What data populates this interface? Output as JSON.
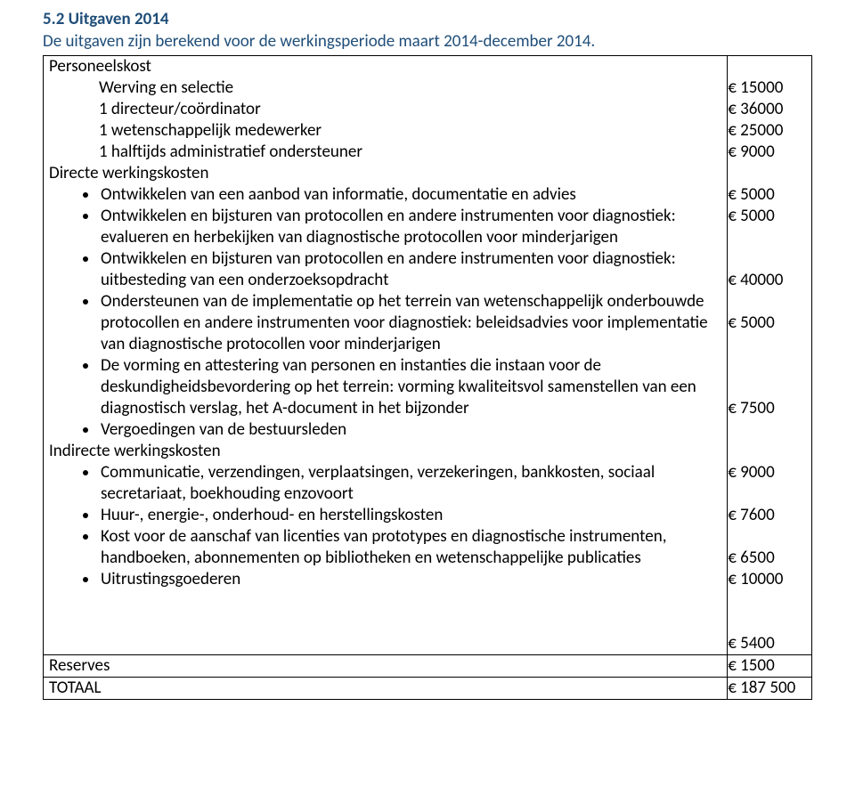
{
  "heading": {
    "title": "5.2 Uitgaven 2014",
    "subtitle": "De uitgaven zijn berekend voor de werkingsperiode maart 2014-december 2014."
  },
  "sections": {
    "personeel": {
      "label": "Personeelskost",
      "items": [
        {
          "label": "Werving en selectie",
          "amount": "€ 15000"
        },
        {
          "label": "1 directeur/coördinator",
          "amount": "€ 36000"
        },
        {
          "label": "1 wetenschappelijk medewerker",
          "amount": "€ 25000"
        },
        {
          "label": "1 halftijds administratief ondersteuner",
          "amount": "€ 9000"
        }
      ]
    },
    "directe": {
      "label": "Directe werkingskosten",
      "items": [
        {
          "label": "Ontwikkelen van een aanbod van informatie, documentatie en advies",
          "amount": "€ 5000",
          "lines": 1
        },
        {
          "label": "Ontwikkelen en bijsturen van protocollen en andere instrumenten voor diagnostiek: evalueren en herbekijken van diagnostische protocollen voor minderjarigen",
          "amount": "€ 5000",
          "lines": 3
        },
        {
          "label": "Ontwikkelen en bijsturen van protocollen en andere instrumenten voor diagnostiek: uitbesteding van een onderzoeksopdracht",
          "amount": "€ 40000",
          "lines": 2
        },
        {
          "label": "Ondersteunen van de implementatie op het terrein van wetenschappelijk onderbouwde protocollen en andere instrumenten voor diagnostiek: beleidsadvies voor implementatie van diagnostische protocollen voor minderjarigen",
          "amount": "€ 5000",
          "lines": 4
        },
        {
          "label": "De vorming en attestering van personen en instanties die instaan voor de deskundigheidsbevordering op het terrein: vorming kwaliteitsvol samenstellen van een diagnostisch verslag, het A-document in het bijzonder",
          "amount": "€ 7500",
          "lines": 3
        },
        {
          "label": "Vergoedingen van de bestuursleden",
          "amount": "€ 9000",
          "lines": 1
        }
      ]
    },
    "indirecte": {
      "label": "Indirecte werkingskosten",
      "items": [
        {
          "label": "Communicatie, verzendingen, verplaatsingen, verzekeringen, bankkosten, sociaal secretariaat, boekhouding enzovoort",
          "amount": "€ 7600",
          "lines": 2
        },
        {
          "label": "Huur-, energie-, onderhoud- en herstellingskosten",
          "amount": "€ 6500",
          "lines": 1
        },
        {
          "label": "Kost voor de aanschaf van licenties van prototypes en diagnostische instrumenten, handboeken, abonnementen op bibliotheken en wetenschappelijke publicaties",
          "amount": "€ 10000",
          "lines": 3
        },
        {
          "label": "Uitrustingsgoederen",
          "amount": "€ 5400",
          "lines": 1
        }
      ]
    },
    "reserves": {
      "label": "Reserves",
      "amount": "€ 1500"
    },
    "totaal": {
      "label": "TOTAAL",
      "amount": "€ 187 500"
    }
  }
}
